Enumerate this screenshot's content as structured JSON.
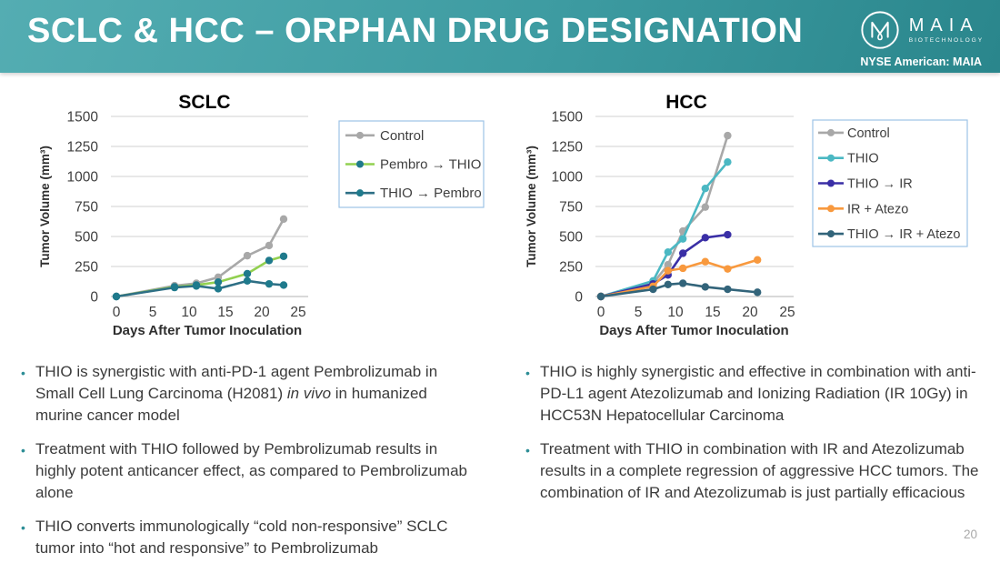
{
  "header": {
    "title": "SCLC & HCC – ORPHAN DRUG DESIGNATION",
    "logo_brand": "MAIA",
    "logo_subtext": "BIOTECHNOLOGY",
    "ticker": "NYSE American: MAIA"
  },
  "footer": {
    "page_number": "20"
  },
  "ui": {
    "bullet_marker": "•"
  },
  "colors": {
    "banner_teal_light": "#54adb2",
    "banner_teal_dark": "#2a868c",
    "accent_teal": "#2d8e96",
    "legend_border": "#9dc3e6",
    "grid": "#d9d9d9",
    "text_dark": "#3b3b3b"
  },
  "chart_data": [
    {
      "type": "line",
      "title": "SCLC",
      "xlabel": "Days After Tumor Inoculation",
      "ylabel": "Tumor Volume (mm³)",
      "xlim": [
        0,
        25
      ],
      "ylim": [
        0,
        1500
      ],
      "xticks": [
        0,
        5,
        10,
        15,
        20,
        25
      ],
      "yticks": [
        0,
        250,
        500,
        750,
        1000,
        1250,
        1500
      ],
      "grid": true,
      "legend_position": "right",
      "series": [
        {
          "name": "Control",
          "color": "#a8a8a8",
          "marker_color": "#a8a8a8",
          "x": [
            0,
            8,
            11,
            14,
            18,
            21,
            23
          ],
          "y": [
            0,
            90,
            110,
            160,
            340,
            425,
            645
          ]
        },
        {
          "name": "Pembro → THIO",
          "color": "#92d050",
          "marker_color": "#1f7a8c",
          "x": [
            0,
            8,
            11,
            14,
            18,
            21,
            23
          ],
          "y": [
            0,
            80,
            95,
            120,
            190,
            300,
            335
          ]
        },
        {
          "name": "THIO → Pembro",
          "color": "#2e6f85",
          "marker_color": "#1f7a8c",
          "x": [
            0,
            8,
            11,
            14,
            18,
            21,
            23
          ],
          "y": [
            0,
            75,
            88,
            65,
            130,
            105,
            95
          ]
        }
      ]
    },
    {
      "type": "line",
      "title": "HCC",
      "xlabel": "Days After Tumor Inoculation",
      "ylabel": "Tumor Volume (mm³)",
      "xlim": [
        0,
        25
      ],
      "ylim": [
        0,
        1500
      ],
      "xticks": [
        0,
        5,
        10,
        15,
        20,
        25
      ],
      "yticks": [
        0,
        250,
        500,
        750,
        1000,
        1250,
        1500
      ],
      "grid": true,
      "legend_position": "right",
      "series": [
        {
          "name": "Control",
          "color": "#a8a8a8",
          "marker_color": "#a8a8a8",
          "x": [
            0,
            7,
            9,
            11,
            14,
            17
          ],
          "y": [
            0,
            110,
            265,
            545,
            745,
            1340
          ]
        },
        {
          "name": "THIO",
          "color": "#4bb8c3",
          "marker_color": "#4bb8c3",
          "x": [
            0,
            7,
            9,
            11,
            14,
            17
          ],
          "y": [
            0,
            130,
            370,
            480,
            900,
            1120
          ]
        },
        {
          "name": "THIO → IR",
          "color": "#3a2fa6",
          "marker_color": "#3a2fa6",
          "x": [
            0,
            7,
            9,
            11,
            14,
            17
          ],
          "y": [
            0,
            105,
            180,
            360,
            490,
            515
          ]
        },
        {
          "name": "IR + Atezo",
          "color": "#f8993e",
          "marker_color": "#f8993e",
          "x": [
            0,
            7,
            9,
            11,
            14,
            17,
            21
          ],
          "y": [
            0,
            85,
            215,
            235,
            290,
            230,
            305
          ]
        },
        {
          "name": "THIO → IR + Atezo",
          "color": "#32647a",
          "marker_color": "#32647a",
          "x": [
            0,
            7,
            9,
            11,
            14,
            17,
            21
          ],
          "y": [
            0,
            60,
            100,
            110,
            80,
            60,
            35
          ]
        }
      ]
    }
  ],
  "bullets_left": [
    {
      "segments": [
        {
          "text": "THIO is synergistic with anti-PD-1 agent Pembrolizumab in Small Cell Lung Carcinoma (H2081) "
        },
        {
          "text": "in vivo",
          "italic": true
        },
        {
          "text": " in humanized murine cancer model"
        }
      ]
    },
    {
      "segments": [
        {
          "text": "Treatment with THIO followed by Pembrolizumab results in highly potent anticancer effect, as compared to Pembrolizumab alone"
        }
      ]
    },
    {
      "segments": [
        {
          "text": "THIO converts immunologically “cold non-responsive” SCLC tumor into “hot and responsive” to Pembrolizumab"
        }
      ]
    }
  ],
  "bullets_right": [
    {
      "segments": [
        {
          "text": "THIO is highly synergistic and effective in combination with anti-PD-L1 agent Atezolizumab and Ionizing Radiation (IR 10Gy) in HCC53N Hepatocellular Carcinoma"
        }
      ]
    },
    {
      "segments": [
        {
          "text": "Treatment with THIO in combination with IR and Atezolizumab results in a complete regression of aggressive HCC tumors. The combination of IR and Atezolizumab is just partially efficacious"
        }
      ]
    }
  ]
}
